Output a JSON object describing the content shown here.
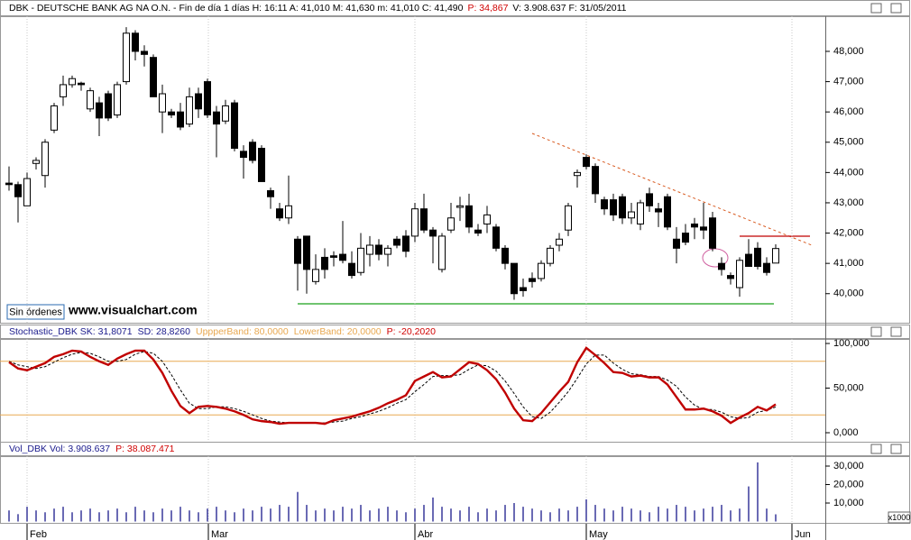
{
  "chart_data": [
    {
      "type": "candlestick",
      "title": [
        "DBK - DEUTSCHE BANK AG NA O.N. - Fin de día 1 días H: 16:11 A: 41,010 M: 41,630 m: 41,010 C: 41,490",
        "P: 34,867",
        "V: 3.908.637  F: 31/05/2011"
      ],
      "annotations": [
        "Sin órdenes",
        "www.visualchart.com"
      ],
      "xlim": [
        -1,
        90.5
      ],
      "ylim": [
        39.04,
        49.16
      ],
      "yticks": [
        {
          "value": 40,
          "label": "40,000"
        },
        {
          "value": 41,
          "label": "41,000"
        },
        {
          "value": 42,
          "label": "42,000"
        },
        {
          "value": 43,
          "label": "43,000"
        },
        {
          "value": 44,
          "label": "44,000"
        },
        {
          "value": 45,
          "label": "45,000"
        },
        {
          "value": 46,
          "label": "46,000"
        },
        {
          "value": 47,
          "label": "47,000"
        },
        {
          "value": 48,
          "label": "48,000"
        }
      ],
      "open": [
        43.65,
        43.6,
        42.9,
        44.3,
        43.9,
        45.4,
        46.5,
        46.9,
        46.95,
        46.1,
        46.3,
        46.6,
        45.9,
        47.0,
        48.6,
        48.0,
        47.8,
        46.0,
        46.0,
        46.0,
        45.6,
        46.6,
        47.0,
        46.0,
        45.7,
        46.3,
        44.7,
        45.0,
        44.8,
        43.4,
        42.8,
        42.5,
        41.8,
        41.9,
        40.4,
        41.2,
        41.25,
        41.3,
        41.0,
        40.7,
        41.3,
        41.6,
        41.3,
        41.8,
        41.9,
        41.9,
        42.8,
        42.1,
        40.8,
        42.1,
        42.85,
        42.9,
        42.1,
        42.3,
        42.2,
        41.5,
        41.0,
        40.2,
        40.5,
        40.5,
        41.0,
        41.6,
        42.1,
        43.9,
        44.5,
        44.2,
        43.1,
        43.1,
        43.2,
        42.5,
        42.3,
        43.3,
        42.8,
        43.2,
        41.8,
        42.0,
        42.3,
        42.2,
        42.5,
        41.0,
        40.6,
        40.2,
        41.3,
        41.5,
        41.0,
        41.01
      ],
      "high": [
        44.2,
        43.7,
        44.0,
        44.5,
        45.1,
        46.3,
        47.2,
        47.2,
        47.0,
        46.8,
        46.5,
        46.7,
        47.0,
        48.8,
        48.7,
        48.2,
        47.9,
        46.9,
        46.1,
        46.3,
        46.8,
        46.8,
        47.1,
        46.2,
        46.4,
        46.4,
        44.9,
        45.1,
        44.9,
        43.5,
        43.0,
        43.9,
        41.9,
        41.9,
        41.3,
        41.5,
        41.4,
        42.4,
        41.4,
        42.0,
        41.9,
        41.8,
        41.6,
        41.9,
        42.1,
        43.0,
        43.3,
        42.2,
        42.0,
        43.0,
        43.2,
        43.3,
        42.3,
        42.9,
        42.3,
        41.6,
        41.0,
        40.5,
        40.7,
        41.1,
        41.6,
        42.0,
        43.0,
        44.1,
        44.6,
        44.3,
        43.2,
        43.3,
        43.3,
        43.0,
        43.1,
        43.5,
        43.0,
        43.3,
        42.2,
        42.3,
        42.5,
        43.0,
        42.7,
        41.2,
        40.7,
        41.2,
        41.8,
        41.7,
        41.2,
        41.63
      ],
      "low": [
        43.4,
        42.35,
        42.9,
        44.1,
        43.5,
        45.3,
        46.2,
        46.8,
        46.7,
        46.0,
        45.2,
        45.7,
        45.8,
        46.9,
        47.7,
        47.5,
        46.5,
        45.3,
        45.8,
        45.4,
        45.5,
        45.8,
        45.8,
        44.5,
        45.6,
        44.7,
        43.8,
        44.3,
        43.7,
        42.8,
        42.4,
        42.3,
        40.1,
        40.0,
        40.3,
        40.5,
        40.9,
        41.0,
        40.5,
        40.6,
        40.9,
        41.1,
        40.9,
        41.5,
        41.2,
        41.7,
        42.0,
        41.0,
        40.7,
        42.0,
        42.4,
        42.0,
        41.9,
        42.0,
        41.4,
        40.8,
        39.8,
        39.9,
        40.2,
        40.4,
        40.9,
        41.4,
        41.9,
        43.5,
        44.1,
        43.0,
        42.6,
        42.4,
        42.3,
        42.3,
        42.1,
        42.7,
        42.2,
        42.1,
        41.0,
        41.6,
        41.8,
        41.8,
        41.4,
        40.6,
        40.3,
        39.9,
        40.9,
        40.8,
        40.6,
        41.01
      ],
      "close": [
        43.6,
        43.2,
        43.8,
        44.4,
        45.0,
        46.2,
        46.9,
        47.1,
        46.9,
        46.7,
        45.8,
        45.8,
        46.9,
        48.6,
        48.0,
        47.9,
        46.5,
        46.6,
        45.9,
        45.5,
        46.5,
        46.1,
        45.9,
        45.6,
        46.2,
        44.8,
        44.5,
        44.4,
        43.7,
        43.2,
        42.5,
        42.9,
        41.0,
        40.8,
        40.8,
        40.8,
        41.2,
        41.1,
        40.6,
        41.5,
        41.6,
        41.3,
        41.5,
        41.6,
        41.4,
        42.8,
        42.1,
        41.9,
        41.9,
        42.5,
        42.9,
        42.2,
        42.0,
        42.6,
        41.5,
        41.0,
        40.0,
        40.1,
        40.4,
        41.0,
        41.5,
        41.8,
        42.9,
        44.0,
        44.2,
        43.3,
        42.8,
        42.6,
        42.5,
        42.7,
        43.0,
        42.9,
        42.7,
        42.2,
        41.5,
        41.7,
        42.2,
        42.1,
        41.5,
        40.8,
        40.5,
        41.1,
        40.9,
        40.9,
        40.7,
        41.49
      ]
    },
    {
      "type": "line",
      "title": [
        "Stochastic_DBK SK: 31,8071",
        "SD: 28,8260",
        "UppperBand: 80,0000",
        "LowerBand: 20,0000",
        "P: -20,2020"
      ],
      "xlim": [
        -1,
        90.5
      ],
      "ylim": [
        -10.1,
        105.05
      ],
      "yticks": [
        {
          "value": 0,
          "label": "0,000"
        },
        {
          "value": 50,
          "label": "50,000"
        },
        {
          "value": 100,
          "label": "100,000"
        }
      ],
      "upper_band": 80,
      "lower_band": 20,
      "band_color": "#e8a850",
      "series": [
        {
          "color": "#c00000",
          "values": [
            79,
            72,
            70,
            74,
            78,
            85,
            88,
            92,
            91,
            85,
            80,
            76,
            83,
            88,
            92,
            92,
            82,
            67,
            47,
            30,
            22,
            29,
            30,
            29,
            27,
            24,
            20,
            15,
            13,
            12,
            10,
            11,
            11,
            11,
            11,
            10,
            14,
            16,
            18,
            21,
            24,
            28,
            33,
            37,
            42,
            58,
            63,
            68,
            62,
            63,
            71,
            79,
            77,
            70,
            60,
            45,
            27,
            14,
            13,
            22,
            34,
            46,
            57,
            79,
            95,
            87,
            78,
            68,
            67,
            63,
            64,
            62,
            62,
            54,
            40,
            26,
            26,
            27,
            24,
            19,
            11,
            17,
            22,
            29,
            25,
            31.8071
          ]
        },
        {
          "color": "#000000",
          "dashed": true,
          "values": [
            80,
            76,
            74,
            72,
            74,
            79,
            84,
            88,
            90,
            89,
            85,
            80,
            80,
            82,
            88,
            91,
            89,
            80,
            65,
            48,
            33,
            27,
            27,
            29,
            29,
            27,
            24,
            20,
            16,
            13,
            12,
            11,
            11,
            11,
            11,
            11,
            12,
            13,
            16,
            18,
            21,
            24,
            28,
            33,
            37,
            46,
            54,
            63,
            64,
            64,
            65,
            71,
            76,
            75,
            69,
            58,
            44,
            29,
            18,
            16,
            23,
            34,
            46,
            61,
            77,
            87,
            87,
            78,
            71,
            66,
            65,
            63,
            63,
            59,
            52,
            40,
            31,
            26,
            26,
            23,
            18,
            16,
            17,
            23,
            25,
            28.826
          ]
        }
      ]
    },
    {
      "type": "bar",
      "title": [
        "Vol_DBK Vol: 3.908.637",
        "P: 38.087.471"
      ],
      "y_unit_label": "x1000",
      "color": "#1a1a8c",
      "xlim": [
        -1,
        90.5
      ],
      "ylim": [
        -0.73,
        35.37
      ],
      "yticks": [
        {
          "value": 10,
          "label": "10,000"
        },
        {
          "value": 20,
          "label": "20,000"
        },
        {
          "value": 30,
          "label": "30,000"
        }
      ],
      "xticks": [
        {
          "value": 2,
          "label": "Feb"
        },
        {
          "value": 22.1,
          "label": "Mar"
        },
        {
          "value": 45,
          "label": "Abr"
        },
        {
          "value": 64,
          "label": "May"
        },
        {
          "value": 86.8,
          "label": "Jun"
        }
      ],
      "values": [
        6,
        4,
        8,
        6,
        5,
        7,
        8,
        5,
        6,
        7,
        5,
        6,
        7,
        5,
        8,
        6,
        5,
        7,
        6,
        8,
        6,
        5,
        7,
        8,
        6,
        5,
        7,
        6,
        8,
        7,
        9,
        8,
        16,
        9,
        6,
        7,
        6,
        8,
        7,
        9,
        6,
        7,
        8,
        6,
        5,
        7,
        9,
        13,
        8,
        7,
        6,
        8,
        5,
        7,
        6,
        9,
        10,
        8,
        7,
        6,
        5,
        7,
        6,
        8,
        12,
        9,
        7,
        6,
        8,
        7,
        6,
        5,
        8,
        7,
        9,
        8,
        6,
        7,
        8,
        9,
        6,
        7,
        19,
        32,
        7,
        3.908637
      ]
    }
  ]
}
